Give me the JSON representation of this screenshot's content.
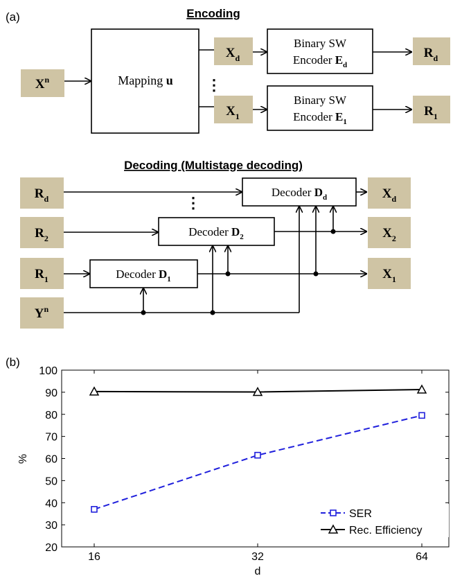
{
  "panel_a": {
    "label": "(a)",
    "encoding_title": "Encoding",
    "decoding_title": "Decoding (Multistage decoding)",
    "input": {
      "main": "X",
      "sup": "n"
    },
    "mapping": {
      "prefix": "Mapping ",
      "bold": "u"
    },
    "xd": {
      "main": "X",
      "sub": "d"
    },
    "x1": {
      "main": "X",
      "sub": "1"
    },
    "vdots": "⋮",
    "enc_d": {
      "line1": "Binary SW",
      "line2": "Encoder ",
      "bold": "E",
      "sub": "d"
    },
    "enc_1": {
      "line1": "Binary SW",
      "line2": "Encoder ",
      "bold": "E",
      "sub": "1"
    },
    "rd": {
      "main": "R",
      "sub": "d"
    },
    "r1": {
      "main": "R",
      "sub": "1"
    },
    "dec_rd": {
      "main": "R",
      "sub": "d"
    },
    "dec_r2": {
      "main": "R",
      "sub": "2"
    },
    "dec_r1": {
      "main": "R",
      "sub": "1"
    },
    "dec_yn": {
      "main": "Y",
      "sup": "n"
    },
    "decoder_d": {
      "prefix": "Decoder ",
      "bold": "D",
      "sub": "d"
    },
    "decoder_2": {
      "prefix": "Decoder ",
      "bold": "D",
      "sub": "2"
    },
    "decoder_1": {
      "prefix": "Decoder ",
      "bold": "D",
      "sub": "1"
    },
    "out_xd": {
      "main": "X",
      "sub": "d"
    },
    "out_x2": {
      "main": "X",
      "sub": "2"
    },
    "out_x1": {
      "main": "X",
      "sub": "1"
    },
    "box_color": "#cfc4a4"
  },
  "panel_b": {
    "label": "(b)"
  },
  "chart_data": {
    "type": "line",
    "x": [
      16,
      32,
      64
    ],
    "xticks": [
      "16",
      "32",
      "64"
    ],
    "xlabel": "d",
    "ylabel": "%",
    "ylim": [
      20,
      100
    ],
    "yticks": [
      20,
      30,
      40,
      50,
      60,
      70,
      80,
      90,
      100
    ],
    "series": [
      {
        "name": "SER",
        "values": [
          37,
          61.5,
          79.5
        ],
        "color": "#1f1fdc",
        "style": "dashed",
        "marker": "square"
      },
      {
        "name": "Rec. Efficiency",
        "values": [
          90.3,
          90.1,
          91.2
        ],
        "color": "#000000",
        "style": "solid",
        "marker": "triangle"
      }
    ],
    "legend_position": "bottom-right",
    "grid": false
  }
}
